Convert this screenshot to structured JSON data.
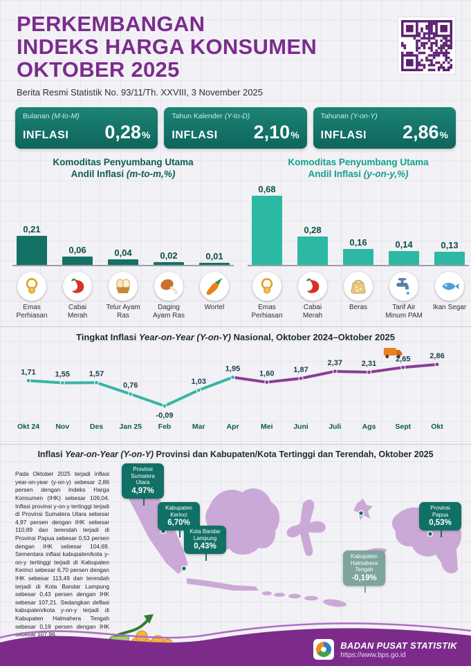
{
  "header": {
    "title_line1": "PERKEMBANGAN",
    "title_line2": "INDEKS HARGA KONSUMEN",
    "title_line3": "OKTOBER 2025",
    "subtitle": "Berita Resmi Statistik No. 93/11/Th. XXVIII, 3 November 2025"
  },
  "stat_boxes": [
    {
      "period": "Bulanan",
      "period_code": "(M-to-M)",
      "label": "INFLASI",
      "value": "0,28",
      "unit": "%"
    },
    {
      "period": "Tahun Kalender",
      "period_code": "(Y-to-D)",
      "label": "INFLASI",
      "value": "2,10",
      "unit": "%"
    },
    {
      "period": "Tahunan",
      "period_code": "(Y-on-Y)",
      "label": "INFLASI",
      "value": "2,86",
      "unit": "%"
    }
  ],
  "bar_section": {
    "mtm": {
      "title_line1": "Komoditas Penyumbang Utama",
      "title_line2_prefix": "Andil Inflasi ",
      "title_line2_code": "(m-to-m,%)"
    },
    "yoy": {
      "title_line1": "Komoditas Penyumbang Utama",
      "title_line2_prefix": "Andil Inflasi ",
      "title_line2_code": "(y-on-y,%)"
    }
  },
  "line_section": {
    "title_part1": "Tingkat Inflasi ",
    "title_italic": "Year-on-Year (Y-on-Y)",
    "title_part2": " Nasional, Oktober 2024–Oktober 2025"
  },
  "map_section": {
    "title_part1": "Inflasi ",
    "title_italic": "Year-on-Year (Y-on-Y)",
    "title_part2": " Provinsi dan Kabupaten/Kota Tertinggi dan Terendah, Oktober 2025",
    "paragraph": "Pada Oktober 2025 terjadi inflasi year-on-year (y-on-y) sebesar 2,86 persen dengan Indeks Harga Konsumen (IHK) sebesar 109,04. Inflasi provinsi y-on-y tertinggi terjadi di Provinsi Sumatera Utara sebesar 4,97 persen dengan IHK sebesar 110,89 dan terendah terjadi di Provinsi Papua sebesar 0,53 persen dengan IHK sebesar 104,69. Sementara inflasi kabupaten/kota y-on-y tertinggi terjadi di Kabupaten Kerinci sebesar 6,70 persen dengan IHK sebesar 113,49 dan terendah terjadi di Kota Bandar Lampung sebesar 0,43 persen dengan IHK sebesar 107,21. Sedangkan deflasi kabupaten/kota y-on-y terjadi di Kabupaten Halmahera Tengah sebesar 0,19 persen dengan IHK sebesar 107,96.",
    "callouts": [
      {
        "name": "Provinsi Sumatera Utara",
        "value": "4,97%"
      },
      {
        "name": "Kabupaten Kerinci",
        "value": "6,70%"
      },
      {
        "name": "Kota Bandar Lampung",
        "value": "0,43%"
      },
      {
        "name": "Kabupaten Halmahera Tengah",
        "value": "-0,19%"
      },
      {
        "name": "Provinsi Papua",
        "value": "0,53%"
      }
    ]
  },
  "footer": {
    "org_name": "BADAN PUSAT STATISTIK",
    "url": "https://www.bps.go.id"
  },
  "colors": {
    "brand_purple": "#7B2C8D",
    "teal_dark": "#0E655B",
    "teal_light": "#2CB9A4",
    "map_land": "#CBA9D6"
  },
  "chart_data": [
    {
      "type": "bar",
      "title": "Komoditas Penyumbang Utama Andil Inflasi (m-to-m,%)",
      "categories": [
        "Emas Perhiasan",
        "Cabai Merah",
        "Telur Ayam Ras",
        "Daging Ayam Ras",
        "Wortel"
      ],
      "values": [
        0.21,
        0.06,
        0.04,
        0.02,
        0.01
      ],
      "value_labels": [
        "0,21",
        "0,06",
        "0,04",
        "0,02",
        "0,01"
      ],
      "icons": [
        "gold-jewelry-icon",
        "red-chili-icon",
        "eggs-icon",
        "chicken-meat-icon",
        "carrot-icon"
      ],
      "bar_color": "#137165",
      "ylim": [
        0,
        0.25
      ]
    },
    {
      "type": "bar",
      "title": "Komoditas Penyumbang Utama Andil Inflasi (y-on-y,%)",
      "categories": [
        "Emas Perhiasan",
        "Cabai Merah",
        "Beras",
        "Tarif Air Minum PAM",
        "Ikan Segar"
      ],
      "values": [
        0.68,
        0.28,
        0.16,
        0.14,
        0.13
      ],
      "value_labels": [
        "0,68",
        "0,28",
        "0,16",
        "0,14",
        "0,13"
      ],
      "icons": [
        "gold-jewelry-icon",
        "red-chili-icon",
        "rice-icon",
        "water-tap-icon",
        "fresh-fish-icon"
      ],
      "bar_color": "#2CB9A4",
      "ylim": [
        0,
        0.75
      ]
    },
    {
      "type": "line",
      "title": "Tingkat Inflasi Year-on-Year (Y-on-Y) Nasional, Oktober 2024–Oktober 2025",
      "x": [
        "Okt 24",
        "Nov",
        "Des",
        "Jan 25",
        "Feb",
        "Mar",
        "Apr",
        "Mei",
        "Juni",
        "Juli",
        "Ags",
        "Sept",
        "Okt"
      ],
      "values": [
        1.71,
        1.55,
        1.57,
        0.76,
        -0.09,
        1.03,
        1.95,
        1.6,
        1.87,
        2.37,
        2.31,
        2.65,
        2.86
      ],
      "value_labels": [
        "1,71",
        "1,55",
        "1,57",
        "0,76",
        "-0,09",
        "1,03",
        "1,95",
        "1,60",
        "1,87",
        "2,37",
        "2,31",
        "2,65",
        "2,86"
      ],
      "teal_segment_end_index": 6,
      "colors": {
        "first": "#35B5A5",
        "second": "#8A3C96"
      },
      "decoration_icon": "delivery-truck-icon",
      "ylim": [
        -0.5,
        3.0
      ]
    }
  ]
}
